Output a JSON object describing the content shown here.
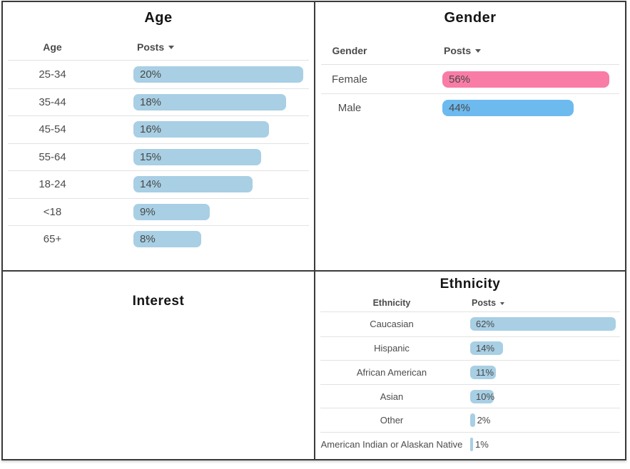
{
  "panels": {
    "age": {
      "title": "Age",
      "columns": {
        "label": "Age",
        "value": "Posts",
        "sort_icon": "caret-down"
      },
      "bar_color": "#A8CFE4",
      "rows": [
        {
          "label": "25-34",
          "value": 20,
          "display": "20%"
        },
        {
          "label": "35-44",
          "value": 18,
          "display": "18%"
        },
        {
          "label": "45-54",
          "value": 16,
          "display": "16%"
        },
        {
          "label": "55-64",
          "value": 15,
          "display": "15%"
        },
        {
          "label": "18-24",
          "value": 14,
          "display": "14%"
        },
        {
          "label": "<18",
          "value": 9,
          "display": "9%"
        },
        {
          "label": "65+",
          "value": 8,
          "display": "8%"
        }
      ]
    },
    "gender": {
      "title": "Gender",
      "columns": {
        "label": "Gender",
        "value": "Posts",
        "sort_icon": "caret-down"
      },
      "bar_color": "#6DBAEF",
      "rows": [
        {
          "label": "Female",
          "value": 56,
          "display": "56%",
          "color": "#F97CA7"
        },
        {
          "label": "Male",
          "value": 44,
          "display": "44%",
          "color": "#6DBAEF"
        }
      ]
    },
    "interest": {
      "title": "Interest"
    },
    "ethnicity": {
      "title": "Ethnicity",
      "columns": {
        "label": "Ethnicity",
        "value": "Posts",
        "sort_icon": "caret-down"
      },
      "bar_color": "#A8CFE4",
      "rows": [
        {
          "label": "Caucasian",
          "value": 62,
          "display": "62%"
        },
        {
          "label": "Hispanic",
          "value": 14,
          "display": "14%"
        },
        {
          "label": "African American",
          "value": 11,
          "display": "11%"
        },
        {
          "label": "Asian",
          "value": 10,
          "display": "10%"
        },
        {
          "label": "Other",
          "value": 2,
          "display": "2%"
        },
        {
          "label": "American Indian or Alaskan Native",
          "value": 1,
          "display": "1%"
        }
      ]
    }
  },
  "colors": {
    "bar_blue_light": "#A8CFE4",
    "bar_pink": "#F97CA7",
    "bar_blue": "#6DBAEF",
    "divider": "#e2e2e2",
    "frame_border": "#3a3a3a",
    "label_text": "#4c4c4c",
    "title_text": "#141414"
  },
  "chart_data": [
    {
      "type": "bar",
      "orientation": "horizontal",
      "title": "Age",
      "categories": [
        "25-34",
        "35-44",
        "45-54",
        "55-64",
        "18-24",
        "<18",
        "65+"
      ],
      "values": [
        20,
        18,
        16,
        15,
        14,
        9,
        8
      ],
      "unit": "percent",
      "xlabel": "Posts",
      "ylabel": "Age",
      "sort": "descending",
      "bar_color": "#A8CFE4",
      "value_labels_inside_bars": true,
      "grid": false,
      "legend": "none"
    },
    {
      "type": "bar",
      "orientation": "horizontal",
      "title": "Gender",
      "categories": [
        "Female",
        "Male"
      ],
      "values": [
        56,
        44
      ],
      "unit": "percent",
      "xlabel": "Posts",
      "ylabel": "Gender",
      "sort": "descending",
      "bar_colors": [
        "#F97CA7",
        "#6DBAEF"
      ],
      "value_labels_inside_bars": true,
      "grid": false,
      "legend": "none"
    },
    {
      "type": "bar",
      "orientation": "horizontal",
      "title": "Ethnicity",
      "categories": [
        "Caucasian",
        "Hispanic",
        "African American",
        "Asian",
        "Other",
        "American Indian or Alaskan Native"
      ],
      "values": [
        62,
        14,
        11,
        10,
        2,
        1
      ],
      "unit": "percent",
      "xlabel": "Posts",
      "ylabel": "Ethnicity",
      "sort": "descending",
      "bar_color": "#A8CFE4",
      "value_labels_inside_bars": true,
      "grid": false,
      "legend": "none"
    }
  ]
}
